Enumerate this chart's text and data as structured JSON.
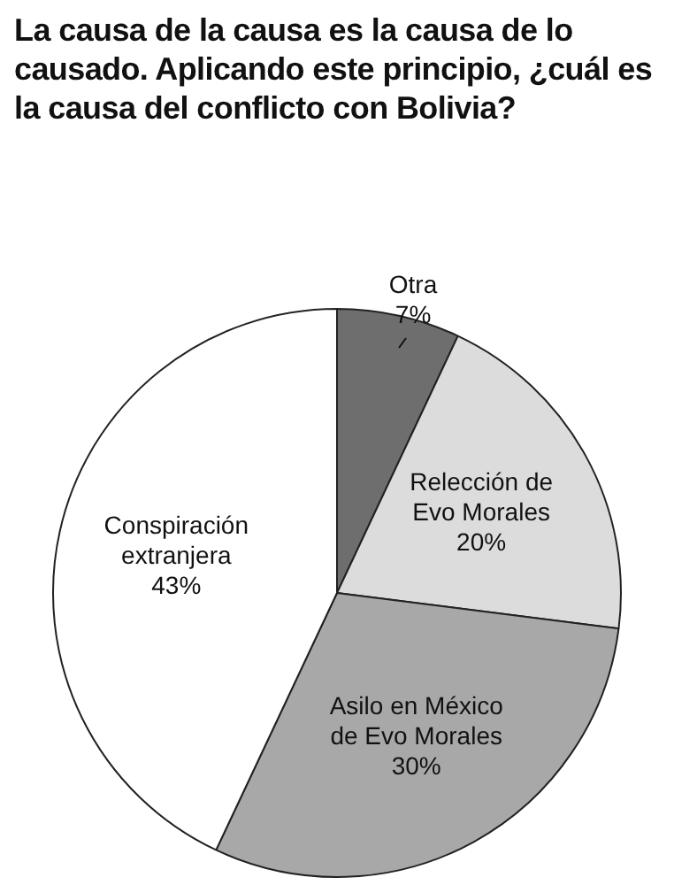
{
  "chart_data": {
    "type": "pie",
    "title": "La causa de la causa es la causa de lo causado. Aplicando este principio, ¿cuál es la causa del conflicto con Bolivia?",
    "categories": [
      "Otra",
      "Relección de Evo Morales",
      "Asilo en México de Evo Morales",
      "Conspiración extranjera"
    ],
    "values": [
      7,
      20,
      30,
      43
    ],
    "value_labels": [
      "7%",
      "20%",
      "30%",
      "43%"
    ],
    "colors": [
      "#6e6e6e",
      "#dcdcdc",
      "#a8a8a8",
      "#ffffff"
    ],
    "legend": false
  }
}
